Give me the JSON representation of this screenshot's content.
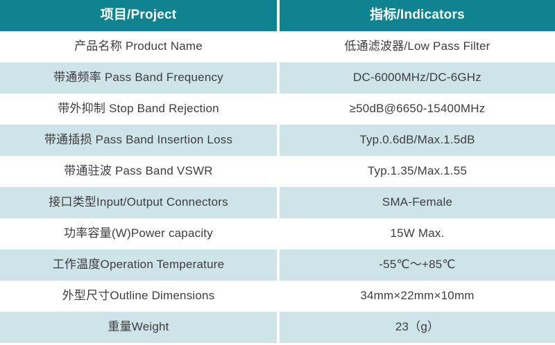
{
  "table": {
    "header": {
      "project": "项目/Project",
      "indicators": "指标/Indicators"
    },
    "rows": [
      {
        "project": "产品名称 Product Name",
        "indicator": "低通滤波器/Low Pass Filter"
      },
      {
        "project": "带通频率 Pass Band Frequency",
        "indicator": "DC-6000MHz/DC-6GHz"
      },
      {
        "project": "带外抑制 Stop Band Rejection",
        "indicator": "≥50dB@6650-15400MHz"
      },
      {
        "project": "带通插损 Pass Band Insertion Loss",
        "indicator": "Typ.0.6dB/Max.1.5dB"
      },
      {
        "project": "带通驻波 Pass Band VSWR",
        "indicator": "Typ.1.35/Max.1.55"
      },
      {
        "project": "接口类型Input/Output Connectors",
        "indicator": "SMA-Female"
      },
      {
        "project": "功率容量(W)Power capacity",
        "indicator": "15W Max."
      },
      {
        "project": "工作温度Operation Temperature",
        "indicator": "-55℃～+85℃"
      },
      {
        "project": "外型尺寸Outline Dimensions",
        "indicator": "34mm×22mm×10mm"
      },
      {
        "project": "重量Weight",
        "indicator": "23（g）"
      }
    ],
    "colors": {
      "header_bg": "#0F8490",
      "header_text": "#FFFFFF",
      "row_tint": "#CEE4E9",
      "text": "#3D3D3D"
    }
  }
}
